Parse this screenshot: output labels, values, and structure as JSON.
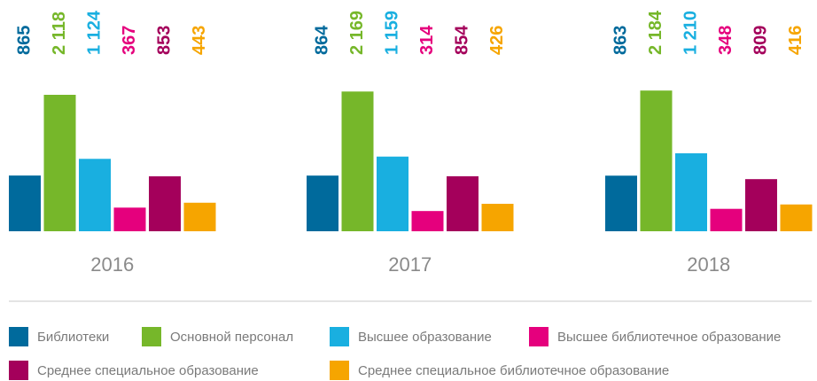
{
  "chart_data": {
    "type": "bar",
    "categories": [
      "2016",
      "2017",
      "2018"
    ],
    "series": [
      {
        "name": "Библиотеки",
        "color": "#006a9c",
        "values": [
          865,
          864,
          863
        ]
      },
      {
        "name": "Основной персонал",
        "color": "#76b72a",
        "values": [
          2118,
          2169,
          2184
        ],
        "value_labels": [
          "2 118",
          "2 169",
          "2 184"
        ]
      },
      {
        "name": "Высшее образование",
        "color": "#19afe0",
        "values": [
          1124,
          1159,
          1210
        ],
        "value_labels": [
          "1 124",
          "1 159",
          "1 210"
        ]
      },
      {
        "name": "Высшее библиотечное образование",
        "color": "#e5007d",
        "values": [
          367,
          314,
          348
        ]
      },
      {
        "name": "Среднее специальное образование",
        "color": "#a4005b",
        "values": [
          853,
          854,
          809
        ]
      },
      {
        "name": "Среднее специальное библиотечное образование",
        "color": "#f6a500",
        "values": [
          443,
          426,
          416
        ]
      }
    ]
  }
}
